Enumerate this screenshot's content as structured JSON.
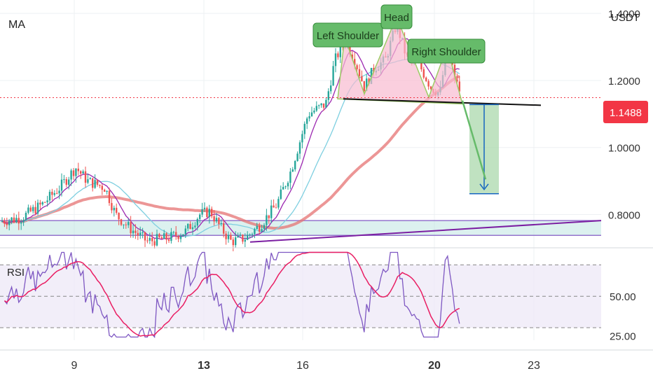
{
  "chart_data": {
    "type": "candlestick",
    "colors": {
      "up": "#26a69a",
      "down": "#ef5350",
      "price_line": "#f23645",
      "ma_fast": "#9c27b0",
      "ma_mid": "#7ecfe0",
      "ma_slow": "#e57373",
      "rsi": "#7e57c2",
      "rsi_ma": "#e91e63",
      "zone": "#b2dfdb",
      "pattern_fill": "#f8bbd0",
      "label_bg": "#66bb6a",
      "target_box": "#a5d6a7",
      "target_arrow": "#1565c0",
      "trendline": "#7b1fa2"
    },
    "price_panel": {
      "indicator_label": "MA",
      "currency": "USDT",
      "y_ticks": [
        "1.4000",
        "1.2000",
        "1.0000",
        "0.8000"
      ],
      "ylim": [
        0.705,
        1.44
      ],
      "last_price": "1.1488",
      "neckline": 1.145,
      "support_zone": [
        0.738,
        0.782
      ],
      "target": 0.905
    },
    "annotations": {
      "left_shoulder": "Left Shoulder",
      "head": "Head",
      "right_shoulder": "Right Shoulder"
    },
    "rsi_panel": {
      "label": "RSI",
      "y_ticks": [
        "50.00",
        "25.00"
      ],
      "ylim": [
        22,
        80
      ],
      "bands": [
        70,
        50,
        30
      ]
    },
    "x_ticks": [
      {
        "label": "9",
        "bold": false
      },
      {
        "label": "13",
        "bold": true
      },
      {
        "label": "16",
        "bold": false
      },
      {
        "label": "20",
        "bold": true
      },
      {
        "label": "23",
        "bold": false
      }
    ]
  }
}
